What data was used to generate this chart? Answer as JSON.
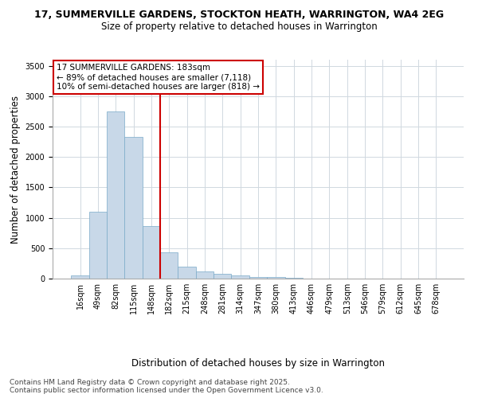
{
  "title_line1": "17, SUMMERVILLE GARDENS, STOCKTON HEATH, WARRINGTON, WA4 2EG",
  "title_line2": "Size of property relative to detached houses in Warrington",
  "xlabel": "Distribution of detached houses by size in Warrington",
  "ylabel": "Number of detached properties",
  "bar_labels": [
    "16sqm",
    "49sqm",
    "82sqm",
    "115sqm",
    "148sqm",
    "182sqm",
    "215sqm",
    "248sqm",
    "281sqm",
    "314sqm",
    "347sqm",
    "380sqm",
    "413sqm",
    "446sqm",
    "479sqm",
    "513sqm",
    "546sqm",
    "579sqm",
    "612sqm",
    "645sqm",
    "678sqm"
  ],
  "bar_values": [
    55,
    1100,
    2750,
    2330,
    870,
    430,
    190,
    115,
    80,
    50,
    30,
    20,
    10,
    5,
    5,
    3,
    2,
    1,
    1,
    1,
    0
  ],
  "bar_color": "#c8d8e8",
  "bar_edge_color": "#7aaac8",
  "vline_color": "#cc0000",
  "ylim": [
    0,
    3600
  ],
  "yticks": [
    0,
    500,
    1000,
    1500,
    2000,
    2500,
    3000,
    3500
  ],
  "annotation_title": "17 SUMMERVILLE GARDENS: 183sqm",
  "annotation_line2": "← 89% of detached houses are smaller (7,118)",
  "annotation_line3": "10% of semi-detached houses are larger (818) →",
  "annotation_box_color": "#ffffff",
  "annotation_edge_color": "#cc0000",
  "footnote1": "Contains HM Land Registry data © Crown copyright and database right 2025.",
  "footnote2": "Contains public sector information licensed under the Open Government Licence v3.0.",
  "background_color": "#ffffff",
  "grid_color": "#d0d8e0",
  "title_fontsize": 9,
  "subtitle_fontsize": 8.5,
  "axis_label_fontsize": 8.5,
  "tick_fontsize": 7,
  "annotation_fontsize": 7.5,
  "footnote_fontsize": 6.5
}
